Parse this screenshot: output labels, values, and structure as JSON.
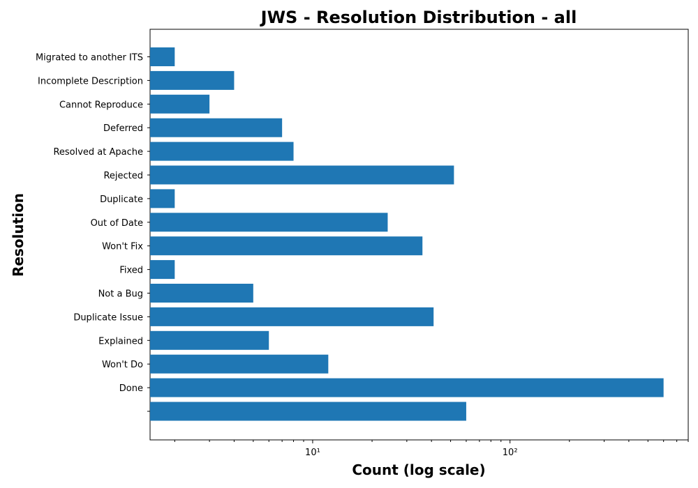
{
  "chart_data": {
    "type": "bar",
    "orientation": "horizontal",
    "title": "JWS - Resolution Distribution - all",
    "xlabel": "Count (log scale)",
    "ylabel": "Resolution",
    "xscale": "log",
    "xlim": [
      1.5,
      800
    ],
    "x_major_ticks": [
      10,
      100
    ],
    "x_tick_labels": [
      "10¹",
      "10²"
    ],
    "grid": false,
    "legend": "none",
    "bar_color": "#1f77b4",
    "categories": [
      "",
      "Done",
      "Won't Do",
      "Explained",
      "Duplicate Issue",
      "Not a Bug",
      "Fixed",
      "Won't Fix",
      "Out of Date",
      "Duplicate",
      "Rejected",
      "Resolved at Apache",
      "Deferred",
      "Cannot Reproduce",
      "Incomplete Description",
      "Migrated to another ITS"
    ],
    "values": [
      60,
      600,
      12,
      6,
      41,
      5,
      2,
      36,
      24,
      2,
      52,
      8,
      7,
      3,
      4,
      2
    ]
  }
}
